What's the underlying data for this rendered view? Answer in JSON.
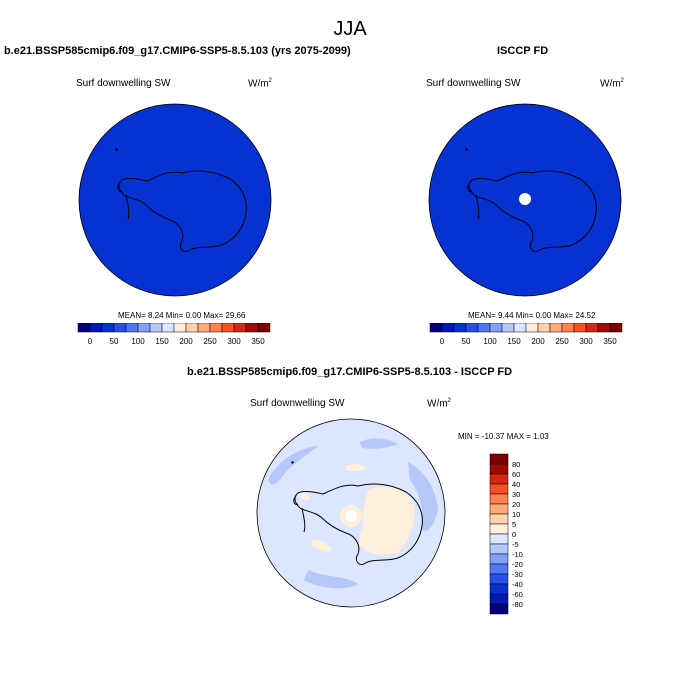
{
  "season": "JJA",
  "left_panel": {
    "title": "b.e21.BSSP585cmip6.f09_g17.CMIP6-SSP5-8.5.103 (yrs 2075-2099)",
    "field": "Surf downwelling SW",
    "units": "W/m",
    "units_sup": "2",
    "stats": "MEAN=   8.24  Min=   0.00  Max=  29.66"
  },
  "right_panel": {
    "title": "ISCCP FD",
    "field": "Surf downwelling SW",
    "units": "W/m",
    "units_sup": "2",
    "stats": "MEAN=   9.44  Min=   0.00  Max=  24.52"
  },
  "diff_panel": {
    "title": "b.e21.BSSP585cmip6.f09_g17.CMIP6-SSP5-8.5.103 - ISCCP FD",
    "field": "Surf downwelling SW",
    "units": "W/m",
    "units_sup": "2",
    "minmax": "MIN = -10.37 MAX =   1.03"
  },
  "colors": {
    "abs_scale": [
      "#00007f",
      "#0018b4",
      "#0632d2",
      "#2850e6",
      "#5078f0",
      "#82a0f5",
      "#b4c8fa",
      "#dce6ff",
      "#fff0dc",
      "#ffd2aa",
      "#ffaa78",
      "#ff8050",
      "#f55028",
      "#d22814",
      "#a00a05",
      "#7f0000"
    ],
    "diff_scale": [
      "#00007f",
      "#0018b4",
      "#0632d2",
      "#2850e6",
      "#5078f0",
      "#82a0f5",
      "#b4c8fa",
      "#dce6ff",
      "#fff0dc",
      "#ffd2aa",
      "#ffaa78",
      "#ff8050",
      "#f55028",
      "#d22814",
      "#a00a05",
      "#7f0000"
    ]
  },
  "chart_data": [
    {
      "type": "heatmap",
      "title": "b.e21.BSSP585cmip6.f09_g17.CMIP6-SSP5-8.5.103 (yrs 2075-2099)",
      "subtitle": "Surf downwelling SW",
      "units": "W/m2",
      "colorbar_labels": [
        "0",
        "50",
        "100",
        "150",
        "200",
        "250",
        "300",
        "350"
      ],
      "mean": 8.24,
      "min": 0.0,
      "max": 29.66
    },
    {
      "type": "heatmap",
      "title": "ISCCP FD",
      "subtitle": "Surf downwelling SW",
      "units": "W/m2",
      "colorbar_labels": [
        "0",
        "50",
        "100",
        "150",
        "200",
        "250",
        "300",
        "350"
      ],
      "mean": 9.44,
      "min": 0.0,
      "max": 24.52
    },
    {
      "type": "heatmap",
      "title": "b.e21.BSSP585cmip6.f09_g17.CMIP6-SSP5-8.5.103 - ISCCP FD",
      "subtitle": "Surf downwelling SW",
      "units": "W/m2",
      "colorbar_labels": [
        "80",
        "60",
        "40",
        "30",
        "20",
        "10",
        "5",
        "0",
        "-5",
        "-10",
        "-20",
        "-30",
        "-40",
        "-60",
        "-80"
      ],
      "min": -10.37,
      "max": 1.03
    }
  ]
}
